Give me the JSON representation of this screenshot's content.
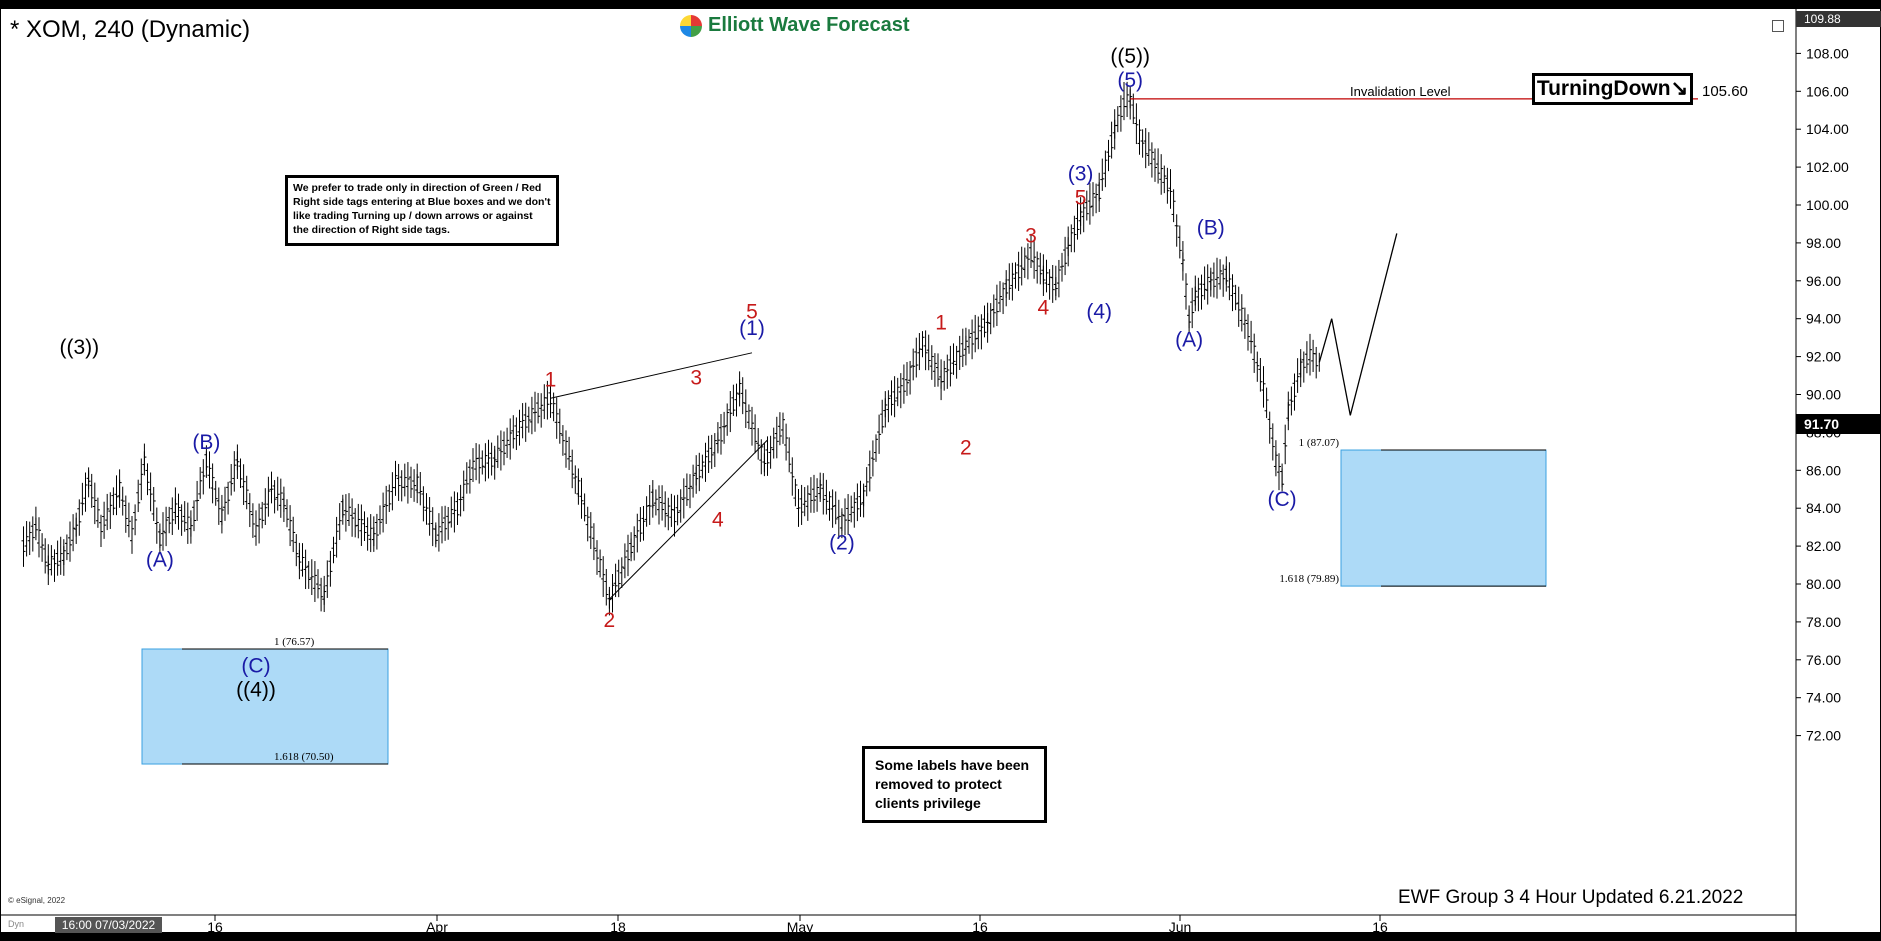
{
  "header": {
    "title": "* XOM, 240 (Dynamic)",
    "logo_text": "Elliott Wave Forecast"
  },
  "note_top": "We prefer to trade only in direction of Green / Red Right side tags entering at Blue boxes and we don't like trading Turning up / down arrows or against the direction of Right side tags.",
  "note_bottom": "Some labels have been removed to protect clients privilege",
  "turning_label": "TurningDown↘",
  "invalidation": {
    "label": "Invalidation Level",
    "value": "105.60"
  },
  "footer": "EWF Group 3 4 Hour Updated 6.21.2022",
  "copyright": "© eSignal, 2022",
  "dyn_label": "Dyn",
  "time_box": "16:00 07/03/2022",
  "last_price": "91.70",
  "top_price": "109.88",
  "colors": {
    "blue_box": "#addaf7",
    "wave_blue": "#1a1aa6",
    "wave_red": "#c61a1a",
    "invalidation": "#c00000"
  },
  "chart_data": {
    "type": "ohlc",
    "symbol": "XOM",
    "interval": "240",
    "ylim": [
      70.5,
      110
    ],
    "yticks": [
      "108.00",
      "106.00",
      "104.00",
      "102.00",
      "100.00",
      "98.00",
      "96.00",
      "94.00",
      "92.00",
      "90.00",
      "88.00",
      "86.00",
      "84.00",
      "82.00",
      "80.00",
      "78.00",
      "76.00",
      "74.00",
      "72.00"
    ],
    "xlabels": [
      "16",
      "Apr",
      "18",
      "May",
      "16",
      "Jun",
      "16"
    ],
    "bars": [
      [
        5,
        82
      ],
      [
        9,
        83
      ],
      [
        13,
        81
      ],
      [
        18,
        81.5
      ],
      [
        22,
        83
      ],
      [
        26,
        85.5
      ],
      [
        30,
        83
      ],
      [
        36,
        85
      ],
      [
        40,
        82.6
      ],
      [
        44,
        86.5
      ],
      [
        49,
        82.4
      ],
      [
        54,
        84
      ],
      [
        59,
        83
      ],
      [
        64,
        86.5
      ],
      [
        69,
        83.6
      ],
      [
        74,
        86.5
      ],
      [
        80,
        82.8
      ],
      [
        85,
        85
      ],
      [
        89,
        84.3
      ],
      [
        94,
        81.3
      ],
      [
        102,
        79.4
      ],
      [
        108,
        84
      ],
      [
        118,
        82.5
      ],
      [
        125,
        85.4
      ],
      [
        132,
        85.3
      ],
      [
        138,
        82.6
      ],
      [
        145,
        84
      ],
      [
        150,
        86.3
      ],
      [
        157,
        86.6
      ],
      [
        165,
        88.3
      ],
      [
        175,
        89.8
      ],
      [
        184,
        85.1
      ],
      [
        194,
        79.2
      ],
      [
        201,
        81.9
      ],
      [
        208,
        84.5
      ],
      [
        215,
        83.6
      ],
      [
        222,
        85.7
      ],
      [
        229,
        87.5
      ],
      [
        236,
        90.3
      ],
      [
        244,
        86.4
      ],
      [
        250,
        88.4
      ],
      [
        255,
        84
      ],
      [
        262,
        85
      ],
      [
        269,
        83.3
      ],
      [
        276,
        84.6
      ],
      [
        283,
        89.3
      ],
      [
        290,
        90.7
      ],
      [
        295,
        92.7
      ],
      [
        301,
        90.8
      ],
      [
        309,
        92.6
      ],
      [
        316,
        93.8
      ],
      [
        322,
        95.6
      ],
      [
        330,
        97.4
      ],
      [
        334,
        96.3
      ],
      [
        338,
        95.7
      ],
      [
        342,
        97.8
      ],
      [
        346,
        99.4
      ],
      [
        352,
        100.7
      ],
      [
        357,
        104
      ],
      [
        360,
        105.4
      ],
      [
        362,
        105.6
      ],
      [
        365,
        103.6
      ],
      [
        370,
        102.2
      ],
      [
        375,
        100.8
      ],
      [
        379,
        97
      ],
      [
        381,
        94
      ],
      [
        383,
        95.2
      ],
      [
        388,
        96
      ],
      [
        393,
        96.3
      ],
      [
        400,
        93.4
      ],
      [
        405,
        90.4
      ],
      [
        409,
        86.5
      ],
      [
        411,
        85.6
      ],
      [
        413,
        89.1
      ],
      [
        417,
        91.4
      ],
      [
        420,
        92.1
      ],
      [
        423,
        91.7
      ]
    ],
    "wave_labels": [
      {
        "text": "((3))",
        "x": 23,
        "price": 91.5,
        "color": "black"
      },
      {
        "text": "(A)",
        "x": 49,
        "price": 82.4,
        "color": "blue"
      },
      {
        "text": "(B)",
        "x": 64,
        "price": 86.5,
        "color": "blue"
      },
      {
        "text": "(C)",
        "x": 80,
        "price": 76.8,
        "color": "blue"
      },
      {
        "text": "((4))",
        "x": 80,
        "price": 76.8,
        "color": "black"
      },
      {
        "text": "1",
        "x": 175,
        "price": 89.8,
        "color": "red"
      },
      {
        "text": "2",
        "x": 194,
        "price": 79.2,
        "color": "red"
      },
      {
        "text": "3",
        "x": 222,
        "price": 89.9,
        "color": "red"
      },
      {
        "text": "4",
        "x": 229,
        "price": 84.5,
        "color": "red"
      },
      {
        "text": "(1)",
        "x": 240,
        "price": 92.5,
        "color": "blue"
      },
      {
        "text": "5",
        "x": 240,
        "price": 92.1,
        "color": "red"
      },
      {
        "text": "(2)",
        "x": 269,
        "price": 83.3,
        "color": "blue"
      },
      {
        "text": "1",
        "x": 301,
        "price": 92.8,
        "color": "red"
      },
      {
        "text": "2",
        "x": 309,
        "price": 88.3,
        "color": "red"
      },
      {
        "text": "3",
        "x": 330,
        "price": 97.4,
        "color": "red"
      },
      {
        "text": "4",
        "x": 334,
        "price": 95.7,
        "color": "red"
      },
      {
        "text": "5",
        "x": 346,
        "price": 99.4,
        "color": "red"
      },
      {
        "text": "(3)",
        "x": 346,
        "price": 99.4,
        "color": "blue"
      },
      {
        "text": "(4)",
        "x": 352,
        "price": 95.5,
        "color": "blue"
      },
      {
        "text": "(5)",
        "x": 362,
        "price": 105.6,
        "color": "blue"
      },
      {
        "text": "((5))",
        "x": 362,
        "price": 105.6,
        "color": "black"
      },
      {
        "text": "(A)",
        "x": 381,
        "price": 94,
        "color": "blue"
      },
      {
        "text": "(B)",
        "x": 388,
        "price": 97.8,
        "color": "blue"
      },
      {
        "text": "(C)",
        "x": 411,
        "price": 85.6,
        "color": "blue"
      }
    ],
    "fib_boxes": [
      {
        "label_top": "1 (76.57)",
        "label_bot": "1.618 (70.50)",
        "top": 76.57,
        "bot": 70.5
      },
      {
        "label_top": "1 (87.07)",
        "label_bot": "1.618 (79.89)",
        "top": 87.07,
        "bot": 79.89
      }
    ],
    "projection": [
      [
        423,
        91.7
      ],
      [
        427,
        94
      ],
      [
        433,
        88.9
      ],
      [
        448,
        98.5
      ]
    ],
    "trendlines": [
      {
        "from": [
          175,
          89.8
        ],
        "to": [
          240,
          92.2
        ]
      },
      {
        "from": [
          194,
          79.2
        ],
        "to": [
          245,
          87.6
        ]
      }
    ]
  }
}
